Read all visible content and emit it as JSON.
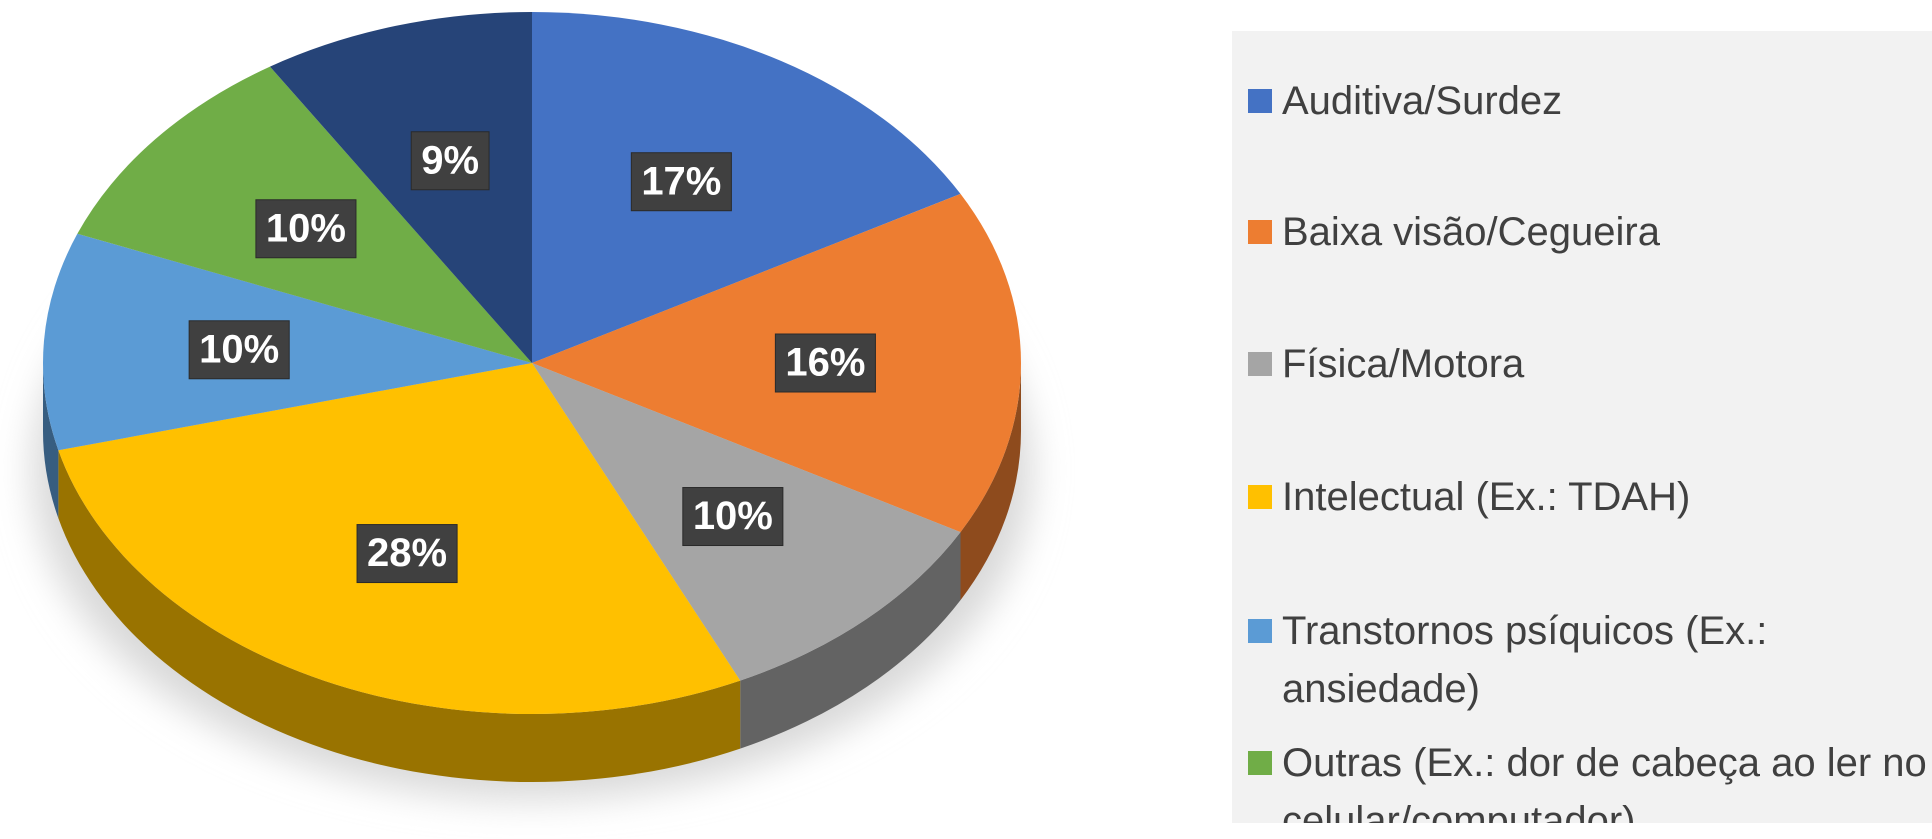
{
  "chart_data": {
    "type": "pie",
    "categories": [
      "Auditiva/Surdez",
      "Baixa visão/Cegueira",
      "Física/Motora",
      "Intelectual (Ex.: TDAH)",
      "Transtornos psíquicos (Ex.: ansiedade)",
      "Outras (Ex.: dor de cabeça ao ler no celular/computador)",
      null
    ],
    "values": [
      17,
      16,
      10,
      28,
      10,
      10,
      9
    ],
    "value_labels": [
      "17%",
      "16%",
      "10%",
      "28%",
      "10%",
      "10%",
      "9%"
    ],
    "colors": [
      "#4472c4",
      "#ed7d31",
      "#a5a5a5",
      "#ffc000",
      "#5b9bd5",
      "#70ad47",
      "#264478"
    ],
    "legend": "right"
  }
}
